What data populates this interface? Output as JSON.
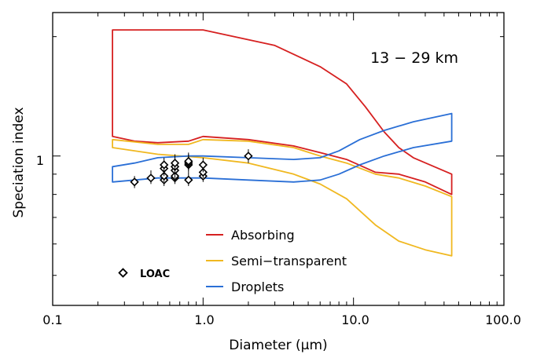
{
  "chart_data": {
    "type": "line",
    "title": "",
    "annotation": "13 − 29 km",
    "xlabel": "Diameter (μm)",
    "ylabel": "Speciation index",
    "xscale": "log",
    "yscale": "log",
    "xlim": [
      0.1,
      100
    ],
    "ylim": [
      0.42,
      2.3
    ],
    "xticks": [
      "0.1",
      "1.0",
      "10.0",
      "100.0"
    ],
    "yticks": [
      "1"
    ],
    "legend_position": "bottom-center",
    "legend": [
      {
        "label": "Absorbing",
        "color": "#d62020"
      },
      {
        "label": "Semi−transparent",
        "color": "#f0b820"
      },
      {
        "label": "Droplets",
        "color": "#2a6fd6"
      }
    ],
    "series": [
      {
        "name": "Absorbing",
        "color": "#d62020",
        "upper": {
          "x": [
            0.25,
            1.0,
            3.0,
            6.0,
            9.0,
            12.0,
            16.0,
            20.0,
            25.0,
            45.0
          ],
          "y": [
            2.08,
            2.08,
            1.9,
            1.68,
            1.52,
            1.33,
            1.15,
            1.05,
            0.99,
            0.9
          ]
        },
        "lower": {
          "x": [
            0.25,
            0.35,
            0.5,
            0.8,
            1.0,
            2.0,
            4.0,
            6.0,
            9.0,
            14.0,
            20.0,
            30.0,
            45.0
          ],
          "y": [
            1.12,
            1.09,
            1.08,
            1.09,
            1.12,
            1.1,
            1.06,
            1.02,
            0.98,
            0.91,
            0.9,
            0.86,
            0.8
          ]
        }
      },
      {
        "name": "Semi−transparent",
        "color": "#f0b820",
        "upper": {
          "x": [
            0.25,
            0.5,
            0.8,
            1.0,
            2.0,
            4.0,
            6.0,
            9.0,
            14.0,
            20.0,
            30.0,
            45.0
          ],
          "y": [
            1.1,
            1.07,
            1.07,
            1.1,
            1.09,
            1.05,
            1.0,
            0.96,
            0.9,
            0.88,
            0.84,
            0.79
          ]
        },
        "lower": {
          "x": [
            0.25,
            0.5,
            1.0,
            2.0,
            4.0,
            6.0,
            9.0,
            14.0,
            20.0,
            30.0,
            45.0
          ],
          "y": [
            1.05,
            1.01,
            0.99,
            0.96,
            0.9,
            0.85,
            0.78,
            0.67,
            0.61,
            0.58,
            0.56
          ]
        }
      },
      {
        "name": "Droplets",
        "color": "#2a6fd6",
        "upper": {
          "x": [
            0.25,
            0.35,
            0.5,
            0.8,
            1.0,
            2.0,
            4.0,
            6.0,
            8.0,
            11.0,
            16.0,
            25.0,
            45.0
          ],
          "y": [
            0.94,
            0.96,
            0.99,
            1.0,
            1.0,
            0.99,
            0.98,
            0.99,
            1.03,
            1.1,
            1.16,
            1.22,
            1.28
          ]
        },
        "lower": {
          "x": [
            0.25,
            0.5,
            1.0,
            2.0,
            4.0,
            6.0,
            8.0,
            11.0,
            16.0,
            25.0,
            45.0
          ],
          "y": [
            0.86,
            0.88,
            0.88,
            0.87,
            0.86,
            0.87,
            0.9,
            0.95,
            1.0,
            1.05,
            1.09
          ]
        }
      }
    ],
    "loac_label": "LOAC",
    "loac_points": [
      {
        "x": 0.35,
        "y": 0.86,
        "err": [
          0.83,
          0.89
        ]
      },
      {
        "x": 0.45,
        "y": 0.88,
        "err": [
          0.85,
          0.92
        ]
      },
      {
        "x": 0.55,
        "y": 0.87,
        "err": [
          0.84,
          0.9
        ]
      },
      {
        "x": 0.55,
        "y": 0.89,
        "err": [
          0.86,
          0.93
        ]
      },
      {
        "x": 0.55,
        "y": 0.93,
        "err": [
          0.89,
          0.97
        ]
      },
      {
        "x": 0.55,
        "y": 0.95,
        "err": [
          0.91,
          0.99
        ]
      },
      {
        "x": 0.65,
        "y": 0.88,
        "err": [
          0.85,
          0.92
        ]
      },
      {
        "x": 0.65,
        "y": 0.89,
        "err": [
          0.86,
          0.93
        ]
      },
      {
        "x": 0.65,
        "y": 0.92,
        "err": [
          0.88,
          0.96
        ]
      },
      {
        "x": 0.65,
        "y": 0.94,
        "err": [
          0.9,
          0.99
        ]
      },
      {
        "x": 0.65,
        "y": 0.96,
        "err": [
          0.92,
          1.01
        ]
      },
      {
        "x": 0.8,
        "y": 0.87,
        "err": [
          0.84,
          0.91
        ]
      },
      {
        "x": 0.8,
        "y": 0.95,
        "err": [
          0.91,
          0.99
        ]
      },
      {
        "x": 0.8,
        "y": 0.96,
        "err": [
          0.92,
          1.01
        ]
      },
      {
        "x": 0.8,
        "y": 0.97,
        "err": [
          0.93,
          1.02
        ]
      },
      {
        "x": 1.0,
        "y": 0.89,
        "err": [
          0.86,
          0.93
        ]
      },
      {
        "x": 1.0,
        "y": 0.91,
        "err": [
          0.88,
          0.95
        ]
      },
      {
        "x": 1.0,
        "y": 0.95,
        "err": [
          0.91,
          0.99
        ]
      },
      {
        "x": 2.0,
        "y": 1.0,
        "err": [
          0.96,
          1.04
        ]
      }
    ]
  }
}
